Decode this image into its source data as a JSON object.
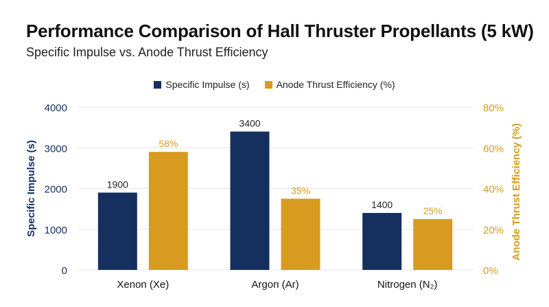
{
  "title": "Performance Comparison of Hall Thruster Propellants (5 kW)",
  "subtitle": "Specific Impulse vs. Anode Thrust Efficiency",
  "colors": {
    "impulse": "#15305e",
    "efficiency": "#d89b20",
    "grid": "#e6e6e6"
  },
  "legend": [
    {
      "label": "Specific Impulse (s)",
      "color": "#15305e"
    },
    {
      "label": "Anode Thrust Efficiency (%)",
      "color": "#d89b20"
    }
  ],
  "chart_data": {
    "type": "bar",
    "title": "Performance Comparison of Hall Thruster Propellants (5 kW)",
    "subtitle": "Specific Impulse vs. Anode Thrust Efficiency",
    "categories": [
      "Xenon (Xe)",
      "Argon (Ar)",
      "Nitrogen (N₂)"
    ],
    "series": [
      {
        "name": "Specific Impulse (s)",
        "axis": "left",
        "values": [
          1900,
          3400,
          1400
        ],
        "labels": [
          "1900",
          "3400",
          "1400"
        ]
      },
      {
        "name": "Anode Thrust Efficiency (%)",
        "axis": "right",
        "values": [
          58,
          35,
          25
        ],
        "labels": [
          "58%",
          "35%",
          "25%"
        ]
      }
    ],
    "ylabel_left": "Specific Impulse (s)",
    "ylabel_right": "Anode Thrust Efficiency (%)",
    "ylim_left": [
      0,
      4000
    ],
    "ylim_right": [
      0,
      80
    ],
    "yticks_left": [
      "0",
      "1000",
      "2000",
      "3000",
      "4000"
    ],
    "yticks_right": [
      "0%",
      "20%",
      "40%",
      "60%",
      "80%"
    ],
    "grid": true,
    "legend_position": "top-center"
  }
}
